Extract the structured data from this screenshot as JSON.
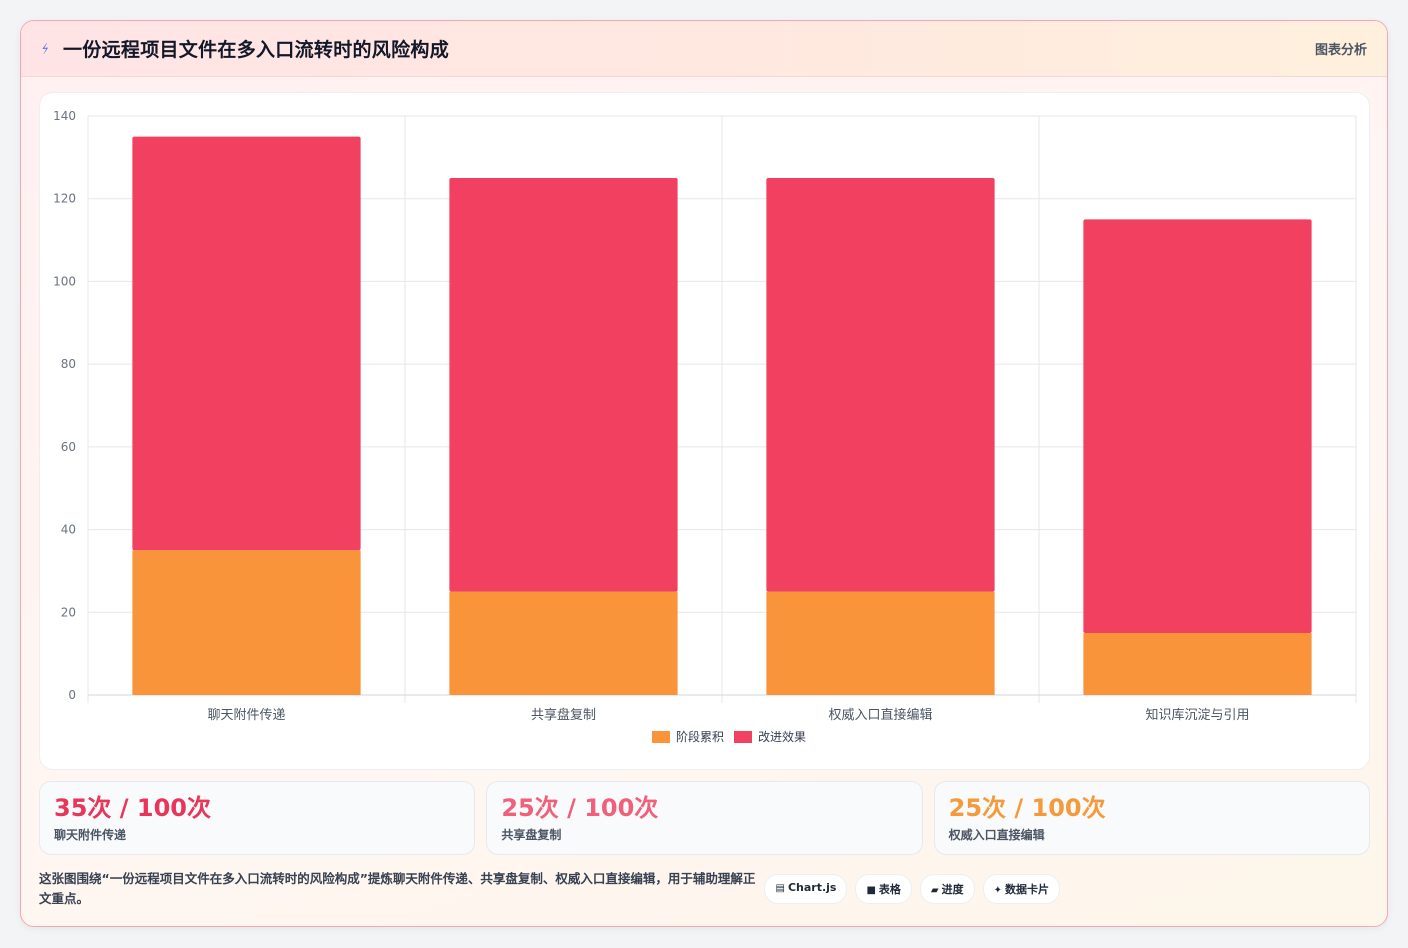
{
  "header": {
    "title": "一份远程项目文件在多入口流转时的风险构成",
    "tag": "图表分析",
    "icon": "bolt-icon"
  },
  "chart_data": {
    "type": "bar",
    "stacked": true,
    "categories": [
      "聊天附件传递",
      "共享盘复制",
      "权威入口直接编辑",
      "知识库沉淀与引用"
    ],
    "series": [
      {
        "name": "阶段累积",
        "values": [
          35,
          25,
          25,
          15
        ],
        "color": "#f9943b"
      },
      {
        "name": "改进效果",
        "values": [
          100,
          100,
          100,
          100
        ],
        "color": "#f24160"
      }
    ],
    "ylim": [
      0,
      140
    ],
    "yticks": [
      0,
      20,
      40,
      60,
      80,
      100,
      120,
      140
    ],
    "grid": true,
    "legend": "bottom",
    "title": "",
    "xlabel": "",
    "ylabel": ""
  },
  "stats": [
    {
      "value": "35次 / 100次",
      "label": "聊天附件传递",
      "color": "#e8365a"
    },
    {
      "value": "25次 / 100次",
      "label": "共享盘复制",
      "color": "#f0607a"
    },
    {
      "value": "25次 / 100次",
      "label": "权威入口直接编辑",
      "color": "#f59a3b"
    }
  ],
  "footer": {
    "description": "这张图围绕“一份远程项目文件在多入口流转时的风险构成”提炼聊天附件传递、共享盘复制、权威入口直接编辑，用于辅助理解正文重点。",
    "chips": [
      {
        "icon": "▤",
        "label": "Chart.js"
      },
      {
        "icon": "■",
        "label": "表格"
      },
      {
        "icon": "▰",
        "label": "进度"
      },
      {
        "icon": "✦",
        "label": "数据卡片"
      }
    ]
  }
}
